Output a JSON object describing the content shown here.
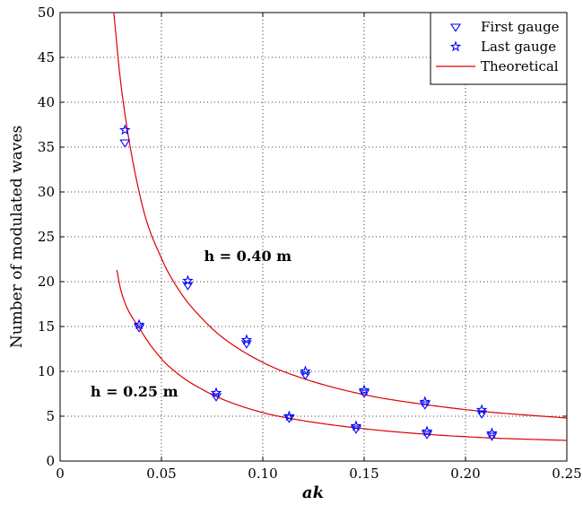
{
  "chart_data": {
    "type": "scatter",
    "xlabel": "ak",
    "ylabel": "Number of modulated waves",
    "xlim": [
      0,
      0.25
    ],
    "ylim": [
      0,
      50
    ],
    "xticks": [
      0,
      0.05,
      0.1,
      0.15,
      0.2,
      0.25
    ],
    "xtick_labels": [
      "0",
      "0.05",
      "0.10",
      "0.15",
      "0.20",
      "0.25"
    ],
    "yticks": [
      0,
      5,
      10,
      15,
      20,
      25,
      30,
      35,
      40,
      45,
      50
    ],
    "ytick_labels": [
      "0",
      "5",
      "10",
      "15",
      "20",
      "25",
      "30",
      "35",
      "40",
      "45",
      "50"
    ],
    "grid": true,
    "legend_position": "top-right",
    "colors": {
      "markers": "#0000ff",
      "curve": "#dd0000"
    },
    "series": [
      {
        "name": "First gauge",
        "marker": "triangle-down",
        "x": [
          0.032,
          0.063,
          0.092,
          0.121,
          0.15,
          0.18,
          0.208,
          0.039,
          0.077,
          0.113,
          0.146,
          0.181,
          0.213
        ],
        "y": [
          35.5,
          19.6,
          13.1,
          9.6,
          7.6,
          6.3,
          5.3,
          14.9,
          7.2,
          4.8,
          3.6,
          3.0,
          2.8
        ]
      },
      {
        "name": "Last gauge",
        "marker": "star",
        "x": [
          0.032,
          0.063,
          0.092,
          0.121,
          0.15,
          0.18,
          0.208,
          0.039,
          0.077,
          0.113,
          0.146,
          0.181,
          0.213
        ],
        "y": [
          36.9,
          20.1,
          13.5,
          10.0,
          7.9,
          6.6,
          5.7,
          15.2,
          7.6,
          5.0,
          3.9,
          3.3,
          3.1
        ]
      },
      {
        "name": "Theoretical",
        "type": "line",
        "curves": [
          {
            "x": [
              0.0265,
              0.03,
              0.04,
              0.05,
              0.06,
              0.07,
              0.08,
              0.1,
              0.12,
              0.15,
              0.18,
              0.21,
              0.25
            ],
            "y": [
              50.0,
              42.0,
              29.0,
              22.6,
              18.6,
              15.9,
              13.8,
              11.0,
              9.2,
              7.4,
              6.3,
              5.5,
              4.8
            ]
          },
          {
            "x": [
              0.028,
              0.03,
              0.04,
              0.05,
              0.06,
              0.07,
              0.08,
              0.1,
              0.12,
              0.15,
              0.18,
              0.21,
              0.25
            ],
            "y": [
              21.3,
              19.0,
              14.5,
              11.4,
              9.4,
              8.0,
              6.9,
              5.4,
              4.5,
              3.6,
              3.0,
              2.6,
              2.3
            ]
          }
        ]
      }
    ],
    "annotations": [
      {
        "text": "h = 0.40 m",
        "x": 0.071,
        "y": 22.3
      },
      {
        "text": "h = 0.25 m",
        "x": 0.015,
        "y": 7.2
      }
    ]
  }
}
